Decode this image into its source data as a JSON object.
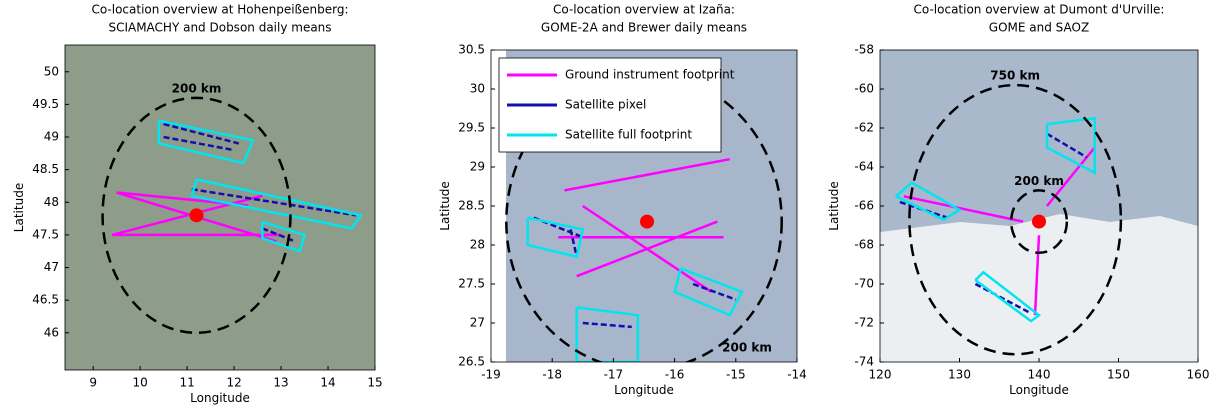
{
  "chart_data": [
    {
      "type": "map",
      "title": [
        "Co-location overview at Hohenpeißenberg:",
        "SCIAMACHY and Dobson daily means"
      ],
      "xlabel": "Longitude",
      "ylabel": "Latitude",
      "xlim": [
        8.4,
        15
      ],
      "ylim": [
        45.43,
        50.41
      ],
      "xticks": [
        9,
        10,
        11,
        12,
        13,
        14,
        15
      ],
      "yticks": [
        46,
        46.5,
        47,
        47.5,
        48,
        48.5,
        49,
        49.5,
        50
      ],
      "series": [
        {
          "color": "#ff00ff",
          "style": "solid",
          "x": [
            9.4,
            13.0,
            null,
            9.4,
            12.6,
            null,
            9.5,
            12.9,
            null,
            9.5,
            12.3
          ],
          "y": [
            47.5,
            47.5,
            null,
            47.5,
            48.1,
            null,
            48.15,
            47.4,
            null,
            48.15,
            47.95
          ]
        },
        {
          "color": "#1010b0",
          "style": "dashed",
          "x": [
            10.5,
            12.1,
            null,
            10.5,
            12.0,
            null,
            11.1,
            14.6,
            null,
            12.6,
            13.3
          ],
          "y": [
            49.2,
            48.9,
            null,
            49.0,
            48.8,
            null,
            48.2,
            47.8,
            null,
            47.6,
            47.4
          ]
        },
        {
          "color": "#00e5ee",
          "style": "solid",
          "x": [
            10.4,
            12.4,
            12.2,
            10.4,
            10.4,
            null,
            11.2,
            14.7,
            14.5,
            11.1,
            11.2,
            null,
            12.6,
            13.5,
            13.4,
            12.6,
            12.6
          ],
          "y": [
            49.25,
            48.95,
            48.6,
            48.9,
            49.25,
            null,
            48.35,
            47.8,
            47.6,
            48.1,
            48.35,
            null,
            47.7,
            47.5,
            47.25,
            47.45,
            47.7
          ]
        }
      ],
      "station": {
        "color": "#ff0000",
        "x": 11.2,
        "y": 47.8
      },
      "circles": [
        {
          "label": "200 km",
          "cx": 11.2,
          "cy": 47.8,
          "rx": 2.0,
          "ry": 1.8,
          "label_at": "top"
        }
      ]
    },
    {
      "type": "map",
      "title": [
        "Co-location overview at Izaña:",
        "GOME-2A and Brewer daily means"
      ],
      "xlabel": "Longitude",
      "ylabel": "Latitude",
      "xlim": [
        -19,
        -14
      ],
      "ylim": [
        26.5,
        30.5
      ],
      "xticks": [
        -19,
        -18,
        -17,
        -16,
        -15,
        -14
      ],
      "yticks": [
        26.5,
        27,
        27.5,
        28,
        28.5,
        29,
        29.5,
        30,
        30.5
      ],
      "legend": "upper left",
      "series": [
        {
          "name": "Ground instrument footprint",
          "color": "#ff00ff",
          "style": "solid",
          "x": [
            -17.9,
            -15.2,
            null,
            -17.8,
            -15.1,
            null,
            -17.6,
            -15.3,
            null,
            -17.5,
            -15.4
          ],
          "y": [
            28.1,
            28.1,
            null,
            28.7,
            29.1,
            null,
            27.6,
            28.3,
            null,
            28.5,
            27.4
          ]
        },
        {
          "name": "Satellite pixel",
          "color": "#1010b0",
          "style": "dashed",
          "x": [
            -18.3,
            -17.5,
            null,
            -17.7,
            -17.6,
            null,
            -15.7,
            -15.0,
            null,
            -17.5,
            -16.7
          ],
          "y": [
            28.35,
            28.1,
            null,
            28.2,
            27.85,
            null,
            27.5,
            27.3,
            null,
            27.0,
            26.95
          ]
        },
        {
          "name": "Satellite full footprint",
          "color": "#00e5ee",
          "style": "solid",
          "x": [
            -18.4,
            -17.5,
            -17.6,
            -18.4,
            -18.4,
            null,
            -15.9,
            -14.9,
            -15.1,
            -16.0,
            -15.9,
            null,
            -17.6,
            -16.6,
            -16.6,
            -17.6,
            -17.6
          ],
          "y": [
            28.35,
            28.2,
            27.85,
            28.0,
            28.35,
            null,
            27.7,
            27.4,
            27.1,
            27.4,
            27.7,
            null,
            27.2,
            27.1,
            26.5,
            26.5,
            27.2
          ]
        }
      ],
      "station": {
        "color": "#ff0000",
        "x": -16.45,
        "y": 28.3
      },
      "circles": [
        {
          "label": "200 km",
          "cx": -16.5,
          "cy": 28.3,
          "rx": 2.25,
          "ry": 1.9,
          "label_at": "bottom-right"
        }
      ]
    },
    {
      "type": "map",
      "title": [
        "Co-location overview at Dumont d'Urville:",
        "GOME and SAOZ"
      ],
      "xlabel": "Longitude",
      "ylabel": "Latitude",
      "xlim": [
        120,
        160
      ],
      "ylim": [
        -74,
        -58
      ],
      "xticks": [
        120,
        130,
        140,
        150,
        160
      ],
      "yticks": [
        -58,
        -60,
        -62,
        -64,
        -66,
        -68,
        -70,
        -72,
        -74
      ],
      "series": [
        {
          "color": "#ff00ff",
          "style": "solid",
          "x": [
            123,
            138,
            null,
            141,
            147,
            null,
            140,
            139.5
          ],
          "y": [
            -65.5,
            -66.8,
            null,
            -66,
            -63,
            null,
            -67.5,
            -71.6
          ]
        },
        {
          "color": "#1010b0",
          "style": "dashed",
          "x": [
            141,
            146,
            null,
            122.5,
            128.5,
            null,
            132,
            139
          ],
          "y": [
            -62.3,
            -63.5,
            null,
            -65.8,
            -66.6,
            null,
            -70,
            -71.5
          ]
        },
        {
          "color": "#00e5ee",
          "style": "solid",
          "x": [
            122,
            124,
            130,
            128,
            122,
            null,
            141,
            147,
            147,
            141,
            141,
            null,
            132,
            133,
            140,
            139,
            132
          ],
          "y": [
            -65.5,
            -64.8,
            -66.2,
            -66.7,
            -65.5,
            null,
            -61.8,
            -61.5,
            -64.3,
            -63,
            -61.8,
            null,
            -69.8,
            -69.4,
            -71.6,
            -71.9,
            -69.8
          ]
        }
      ],
      "station": {
        "color": "#ff0000",
        "x": 140,
        "y": -66.8
      },
      "circles": [
        {
          "label": "750 km",
          "cx": 137,
          "cy": -66.7,
          "rx": 13.3,
          "ry": 6.9,
          "label_at": "top"
        },
        {
          "label": "200 km",
          "cx": 140,
          "cy": -66.8,
          "rx": 3.5,
          "ry": 1.6,
          "label_at": "top"
        }
      ]
    }
  ]
}
